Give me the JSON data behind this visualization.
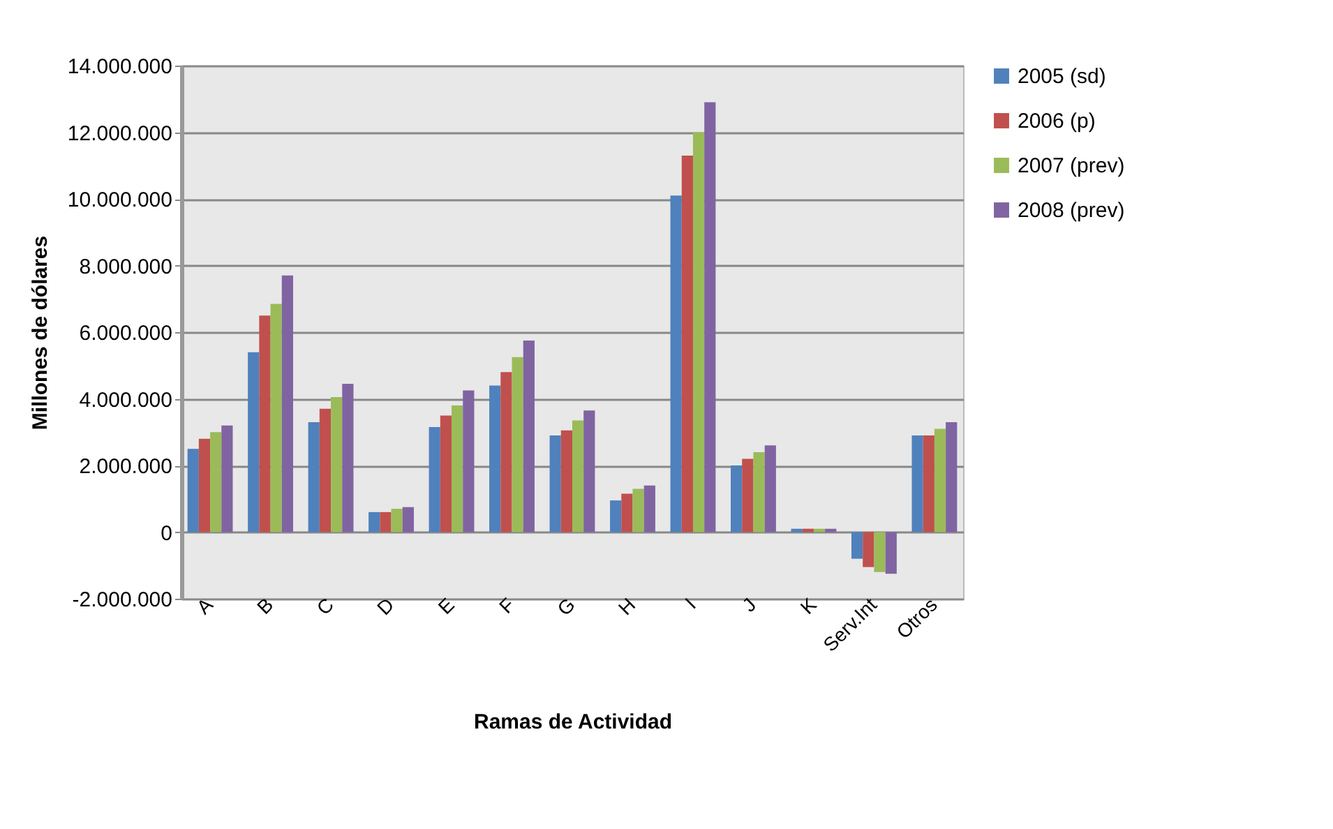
{
  "chart_data": {
    "type": "bar",
    "xlabel": "Ramas de Actividad",
    "ylabel": "Millones de dólares",
    "categories": [
      "A",
      "B",
      "C",
      "D",
      "E",
      "F",
      "G",
      "H",
      "I",
      "J",
      "K",
      "Serv.Int",
      "Otros"
    ],
    "series": [
      {
        "name": "2005 (sd)",
        "color": "#4f81bd",
        "values": [
          2500000,
          5400000,
          3300000,
          600000,
          3150000,
          4400000,
          2900000,
          950000,
          10100000,
          2000000,
          100000,
          -800000,
          2900000
        ]
      },
      {
        "name": "2006 (p)",
        "color": "#c0504d",
        "values": [
          2800000,
          6500000,
          3700000,
          600000,
          3500000,
          4800000,
          3050000,
          1150000,
          11300000,
          2200000,
          100000,
          -1050000,
          2900000
        ]
      },
      {
        "name": "2007 (prev)",
        "color": "#9bbb59",
        "values": [
          3000000,
          6850000,
          4050000,
          700000,
          3800000,
          5250000,
          3350000,
          1300000,
          12000000,
          2400000,
          100000,
          -1200000,
          3100000
        ]
      },
      {
        "name": "2008 (prev)",
        "color": "#8064a2",
        "values": [
          3200000,
          7700000,
          4450000,
          750000,
          4250000,
          5750000,
          3650000,
          1400000,
          12900000,
          2600000,
          100000,
          -1250000,
          3300000
        ]
      }
    ],
    "ylim": [
      -2000000,
      14000000
    ],
    "yticks": [
      {
        "value": -2000000,
        "label": "-2.000.000"
      },
      {
        "value": 0,
        "label": "0"
      },
      {
        "value": 2000000,
        "label": "2.000.000"
      },
      {
        "value": 4000000,
        "label": "4.000.000"
      },
      {
        "value": 6000000,
        "label": "6.000.000"
      },
      {
        "value": 8000000,
        "label": "8.000.000"
      },
      {
        "value": 10000000,
        "label": "10.000.000"
      },
      {
        "value": 12000000,
        "label": "12.000.000"
      },
      {
        "value": 14000000,
        "label": "14.000.000"
      }
    ],
    "grid": "y",
    "legend": "right"
  }
}
